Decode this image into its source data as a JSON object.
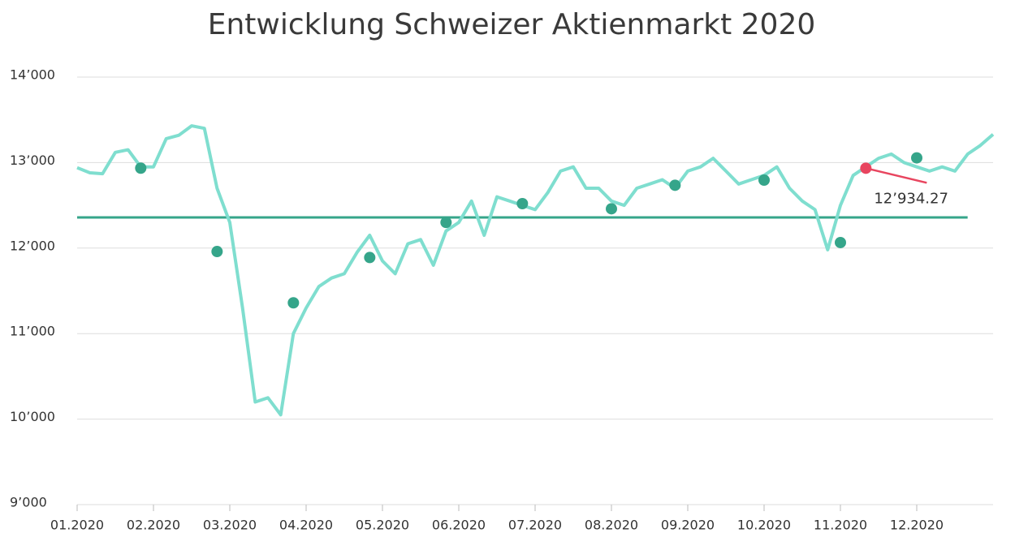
{
  "chart_data": {
    "type": "line",
    "title": "Entwicklung Schweizer Aktienmarkt 2020",
    "categories": [
      "01.2020",
      null,
      null,
      null,
      null,
      null,
      "02.2020",
      null,
      null,
      null,
      null,
      null,
      "03.2020",
      null,
      null,
      null,
      null,
      null,
      "04.2020",
      null,
      null,
      null,
      null,
      null,
      "05.2020",
      null,
      null,
      null,
      null,
      null,
      "06.2020",
      null,
      null,
      null,
      null,
      null,
      "07.2020",
      null,
      null,
      null,
      null,
      null,
      "08.2020",
      null,
      null,
      null,
      null,
      null,
      "09.2020",
      null,
      null,
      null,
      null,
      null,
      "10.2020",
      null,
      null,
      null,
      null,
      null,
      "11.2020",
      null,
      null,
      null,
      null,
      null,
      "12.2020",
      null,
      null,
      null,
      null,
      null,
      null
    ],
    "series": [
      {
        "color": "#7fdecf",
        "style": "line",
        "values": [
          12940,
          12880,
          12870,
          13120,
          13150,
          12950,
          12950,
          13280,
          13320,
          13430,
          13400,
          12700,
          12300,
          11300,
          10200,
          10250,
          10050,
          11000,
          11300,
          11550,
          11650,
          11700,
          11950,
          12150,
          11850,
          11700,
          12050,
          12100,
          11800,
          12200,
          12300,
          12550,
          12150,
          12600,
          12550,
          12500,
          12450,
          12650,
          12900,
          12950,
          12700,
          12700,
          12550,
          12500,
          12700,
          12750,
          12800,
          12700,
          12900,
          12950,
          13050,
          12900,
          12750,
          12800,
          12850,
          12950,
          12700,
          12550,
          12450,
          11980,
          12500,
          12850,
          12950,
          13050,
          13100,
          13000,
          12950,
          12900,
          12950,
          12900,
          13100,
          13200,
          13330
        ]
      },
      {
        "color": "#35a58a",
        "style": "marker",
        "values": [
          null,
          null,
          null,
          null,
          null,
          12935,
          null,
          null,
          null,
          null,
          null,
          11960,
          null,
          null,
          null,
          null,
          null,
          11360,
          null,
          null,
          null,
          null,
          null,
          11890,
          null,
          null,
          null,
          null,
          null,
          12300,
          null,
          null,
          null,
          null,
          null,
          12520,
          null,
          null,
          null,
          null,
          null,
          null,
          12460,
          null,
          null,
          null,
          null,
          12735,
          null,
          null,
          null,
          null,
          null,
          null,
          12795,
          null,
          null,
          null,
          null,
          null,
          12065,
          null,
          null,
          null,
          null,
          null,
          13055,
          null,
          null,
          null,
          null,
          null,
          null
        ]
      }
    ],
    "mean_line": {
      "value": 12359,
      "color": "#35a58a"
    },
    "annotation": {
      "index": 62,
      "value": 12934.27,
      "label": "12’934.27",
      "color": "#e8455f"
    },
    "ylim": [
      9000,
      14000
    ],
    "yticks": [
      {
        "value": 9000,
        "label": "9’000"
      },
      {
        "value": 10000,
        "label": "10’000"
      },
      {
        "value": 11000,
        "label": "11’000"
      },
      {
        "value": 12000,
        "label": "12’000"
      },
      {
        "value": 13000,
        "label": "13’000"
      },
      {
        "value": 14000,
        "label": "14’000"
      }
    ],
    "grid": true
  }
}
